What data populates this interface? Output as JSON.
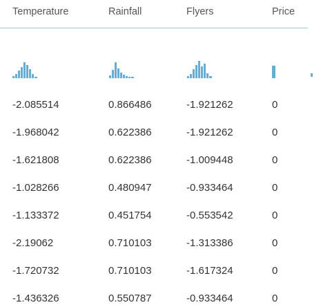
{
  "table": {
    "columns": [
      "Temperature",
      "Rainfall",
      "Flyers",
      "Price"
    ],
    "rows": [
      [
        "-2.085514",
        "0.866486",
        "-1.921262",
        "0"
      ],
      [
        "-1.968042",
        "0.622386",
        "-1.921262",
        "0"
      ],
      [
        "-1.621808",
        "0.622386",
        "-1.009448",
        "0"
      ],
      [
        "-1.028266",
        "0.480947",
        "-0.933464",
        "0"
      ],
      [
        "-1.133372",
        "0.451754",
        "-0.553542",
        "0"
      ],
      [
        "-2.19062",
        "0.710103",
        "-1.313386",
        "0"
      ],
      [
        "-1.720732",
        "0.710103",
        "-1.617324",
        "0"
      ],
      [
        "-1.436326",
        "0.550787",
        "-0.933464",
        "0"
      ]
    ]
  }
}
